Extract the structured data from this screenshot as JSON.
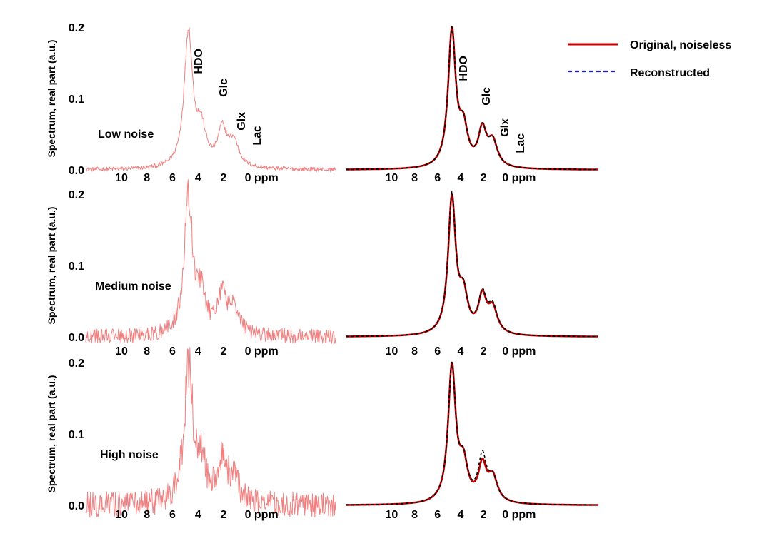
{
  "legend": {
    "items": [
      {
        "label": "Original,  noiseless",
        "color": "#c00000",
        "style": "solid"
      },
      {
        "label": "Reconstructed",
        "color": "#1f1fb4",
        "style": "dashed"
      }
    ]
  },
  "chart_data": [
    {
      "type": "line",
      "row": 0,
      "column": "left",
      "ylabel": "Spectrum, real part (a.u.)",
      "annotation": "Low noise",
      "noise_amplitude": 0.003,
      "yticks": [
        "0.0",
        "0.1",
        "0.2"
      ],
      "xticks": [
        "10",
        "8",
        "6",
        "4",
        "2",
        "0 ppm"
      ],
      "xtick_values": [
        10,
        8,
        6,
        4,
        2,
        0
      ],
      "ytick_values": [
        0,
        0.1,
        0.2
      ],
      "xlim": [
        12.8,
        -6.8
      ],
      "ylim": [
        0,
        0.2
      ],
      "peak_labels": [
        {
          "text": "HDO",
          "ppm": 4.7
        },
        {
          "text": "Glc",
          "ppm": 3.6
        },
        {
          "text": "Glx",
          "ppm": 2.1
        },
        {
          "text": "Lac",
          "ppm": 1.2
        }
      ],
      "series": [
        {
          "color": "#f08080",
          "style": "solid",
          "lorentzian_peaks": [
            {
              "ppm": 4.75,
              "amp": 0.19,
              "width": 0.4
            },
            {
              "ppm": 3.75,
              "amp": 0.05,
              "width": 0.45
            },
            {
              "ppm": 2.1,
              "amp": 0.05,
              "width": 0.42
            },
            {
              "ppm": 1.2,
              "amp": 0.035,
              "width": 0.5
            }
          ]
        }
      ]
    },
    {
      "type": "line",
      "row": 0,
      "column": "right",
      "xticks": [
        "10",
        "8",
        "6",
        "4",
        "2",
        "0 ppm"
      ],
      "xtick_values": [
        10,
        8,
        6,
        4,
        2,
        0
      ],
      "xlim": [
        14,
        -8
      ],
      "ylim": [
        0,
        0.2
      ],
      "peak_labels": [
        {
          "text": "HDO",
          "ppm": 5.0
        },
        {
          "text": "Glc",
          "ppm": 3.7
        },
        {
          "text": "Glx",
          "ppm": 2.2
        },
        {
          "text": "Lac",
          "ppm": 1.2
        }
      ],
      "series": [
        {
          "color": "#c00000",
          "style": "solid",
          "lorentzian_peaks": [
            {
              "ppm": 4.75,
              "amp": 0.19,
              "width": 0.4
            },
            {
              "ppm": 3.75,
              "amp": 0.05,
              "width": 0.45
            },
            {
              "ppm": 2.1,
              "amp": 0.05,
              "width": 0.42
            },
            {
              "ppm": 1.2,
              "amp": 0.035,
              "width": 0.5
            }
          ]
        },
        {
          "color": "#000000",
          "style": "dashed",
          "lorentzian_peaks": [
            {
              "ppm": 4.75,
              "amp": 0.19,
              "width": 0.4
            },
            {
              "ppm": 3.75,
              "amp": 0.05,
              "width": 0.45
            },
            {
              "ppm": 2.1,
              "amp": 0.05,
              "width": 0.42
            },
            {
              "ppm": 1.2,
              "amp": 0.035,
              "width": 0.5
            }
          ]
        }
      ]
    },
    {
      "type": "line",
      "row": 1,
      "column": "left",
      "ylabel": "Spectrum, real part (a.u.)",
      "annotation": "Medium noise",
      "noise_amplitude": 0.01,
      "yticks": [
        "0.0",
        "0.1",
        "0.2"
      ],
      "xticks": [
        "10",
        "8",
        "6",
        "4",
        "2",
        "0 ppm"
      ],
      "xtick_values": [
        10,
        8,
        6,
        4,
        2,
        0
      ],
      "ytick_values": [
        0,
        0.1,
        0.2
      ],
      "xlim": [
        12.8,
        -6.8
      ],
      "ylim": [
        0,
        0.2
      ],
      "series": [
        {
          "color": "#f08080",
          "style": "solid",
          "lorentzian_peaks": [
            {
              "ppm": 4.75,
              "amp": 0.19,
              "width": 0.4
            },
            {
              "ppm": 3.75,
              "amp": 0.05,
              "width": 0.45
            },
            {
              "ppm": 2.1,
              "amp": 0.05,
              "width": 0.42
            },
            {
              "ppm": 1.2,
              "amp": 0.035,
              "width": 0.5
            }
          ]
        }
      ]
    },
    {
      "type": "line",
      "row": 1,
      "column": "right",
      "xticks": [
        "10",
        "8",
        "6",
        "4",
        "2",
        "0 ppm"
      ],
      "xtick_values": [
        10,
        8,
        6,
        4,
        2,
        0
      ],
      "xlim": [
        14,
        -8
      ],
      "ylim": [
        0,
        0.2
      ],
      "series": [
        {
          "color": "#c00000",
          "style": "solid",
          "lorentzian_peaks": [
            {
              "ppm": 4.75,
              "amp": 0.19,
              "width": 0.4
            },
            {
              "ppm": 3.75,
              "amp": 0.05,
              "width": 0.45
            },
            {
              "ppm": 2.1,
              "amp": 0.05,
              "width": 0.42
            },
            {
              "ppm": 1.2,
              "amp": 0.035,
              "width": 0.5
            }
          ]
        },
        {
          "color": "#000000",
          "style": "dashed",
          "lorentzian_peaks": [
            {
              "ppm": 4.75,
              "amp": 0.193,
              "width": 0.4
            },
            {
              "ppm": 3.75,
              "amp": 0.05,
              "width": 0.45
            },
            {
              "ppm": 2.1,
              "amp": 0.052,
              "width": 0.42
            },
            {
              "ppm": 1.2,
              "amp": 0.037,
              "width": 0.5
            }
          ]
        }
      ]
    },
    {
      "type": "line",
      "row": 2,
      "column": "left",
      "ylabel": "Spectrum, real part (a.u.)",
      "annotation": "High noise",
      "noise_amplitude": 0.018,
      "yticks": [
        "0.0",
        "0.1",
        "0.2"
      ],
      "xticks": [
        "10",
        "8",
        "6",
        "4",
        "2",
        "0 ppm"
      ],
      "xtick_values": [
        10,
        8,
        6,
        4,
        2,
        0
      ],
      "ytick_values": [
        0,
        0.1,
        0.2
      ],
      "xlim": [
        12.8,
        -6.8
      ],
      "ylim": [
        0,
        0.2
      ],
      "series": [
        {
          "color": "#f08080",
          "style": "solid",
          "lorentzian_peaks": [
            {
              "ppm": 4.75,
              "amp": 0.19,
              "width": 0.4
            },
            {
              "ppm": 3.75,
              "amp": 0.05,
              "width": 0.45
            },
            {
              "ppm": 2.1,
              "amp": 0.05,
              "width": 0.42
            },
            {
              "ppm": 1.2,
              "amp": 0.035,
              "width": 0.5
            }
          ]
        }
      ]
    },
    {
      "type": "line",
      "row": 2,
      "column": "right",
      "xticks": [
        "10",
        "8",
        "6",
        "4",
        "2",
        "0 ppm"
      ],
      "xtick_values": [
        10,
        8,
        6,
        4,
        2,
        0
      ],
      "xlim": [
        14,
        -8
      ],
      "ylim": [
        0,
        0.2
      ],
      "series": [
        {
          "color": "#c00000",
          "style": "solid",
          "lorentzian_peaks": [
            {
              "ppm": 4.75,
              "amp": 0.19,
              "width": 0.4
            },
            {
              "ppm": 3.75,
              "amp": 0.05,
              "width": 0.45
            },
            {
              "ppm": 2.1,
              "amp": 0.05,
              "width": 0.42
            },
            {
              "ppm": 1.2,
              "amp": 0.035,
              "width": 0.5
            }
          ]
        },
        {
          "color": "#000000",
          "style": "dashed",
          "lorentzian_peaks": [
            {
              "ppm": 4.75,
              "amp": 0.19,
              "width": 0.4
            },
            {
              "ppm": 3.75,
              "amp": 0.05,
              "width": 0.45
            },
            {
              "ppm": 2.1,
              "amp": 0.062,
              "width": 0.42
            },
            {
              "ppm": 1.2,
              "amp": 0.032,
              "width": 0.5
            }
          ]
        }
      ]
    }
  ]
}
